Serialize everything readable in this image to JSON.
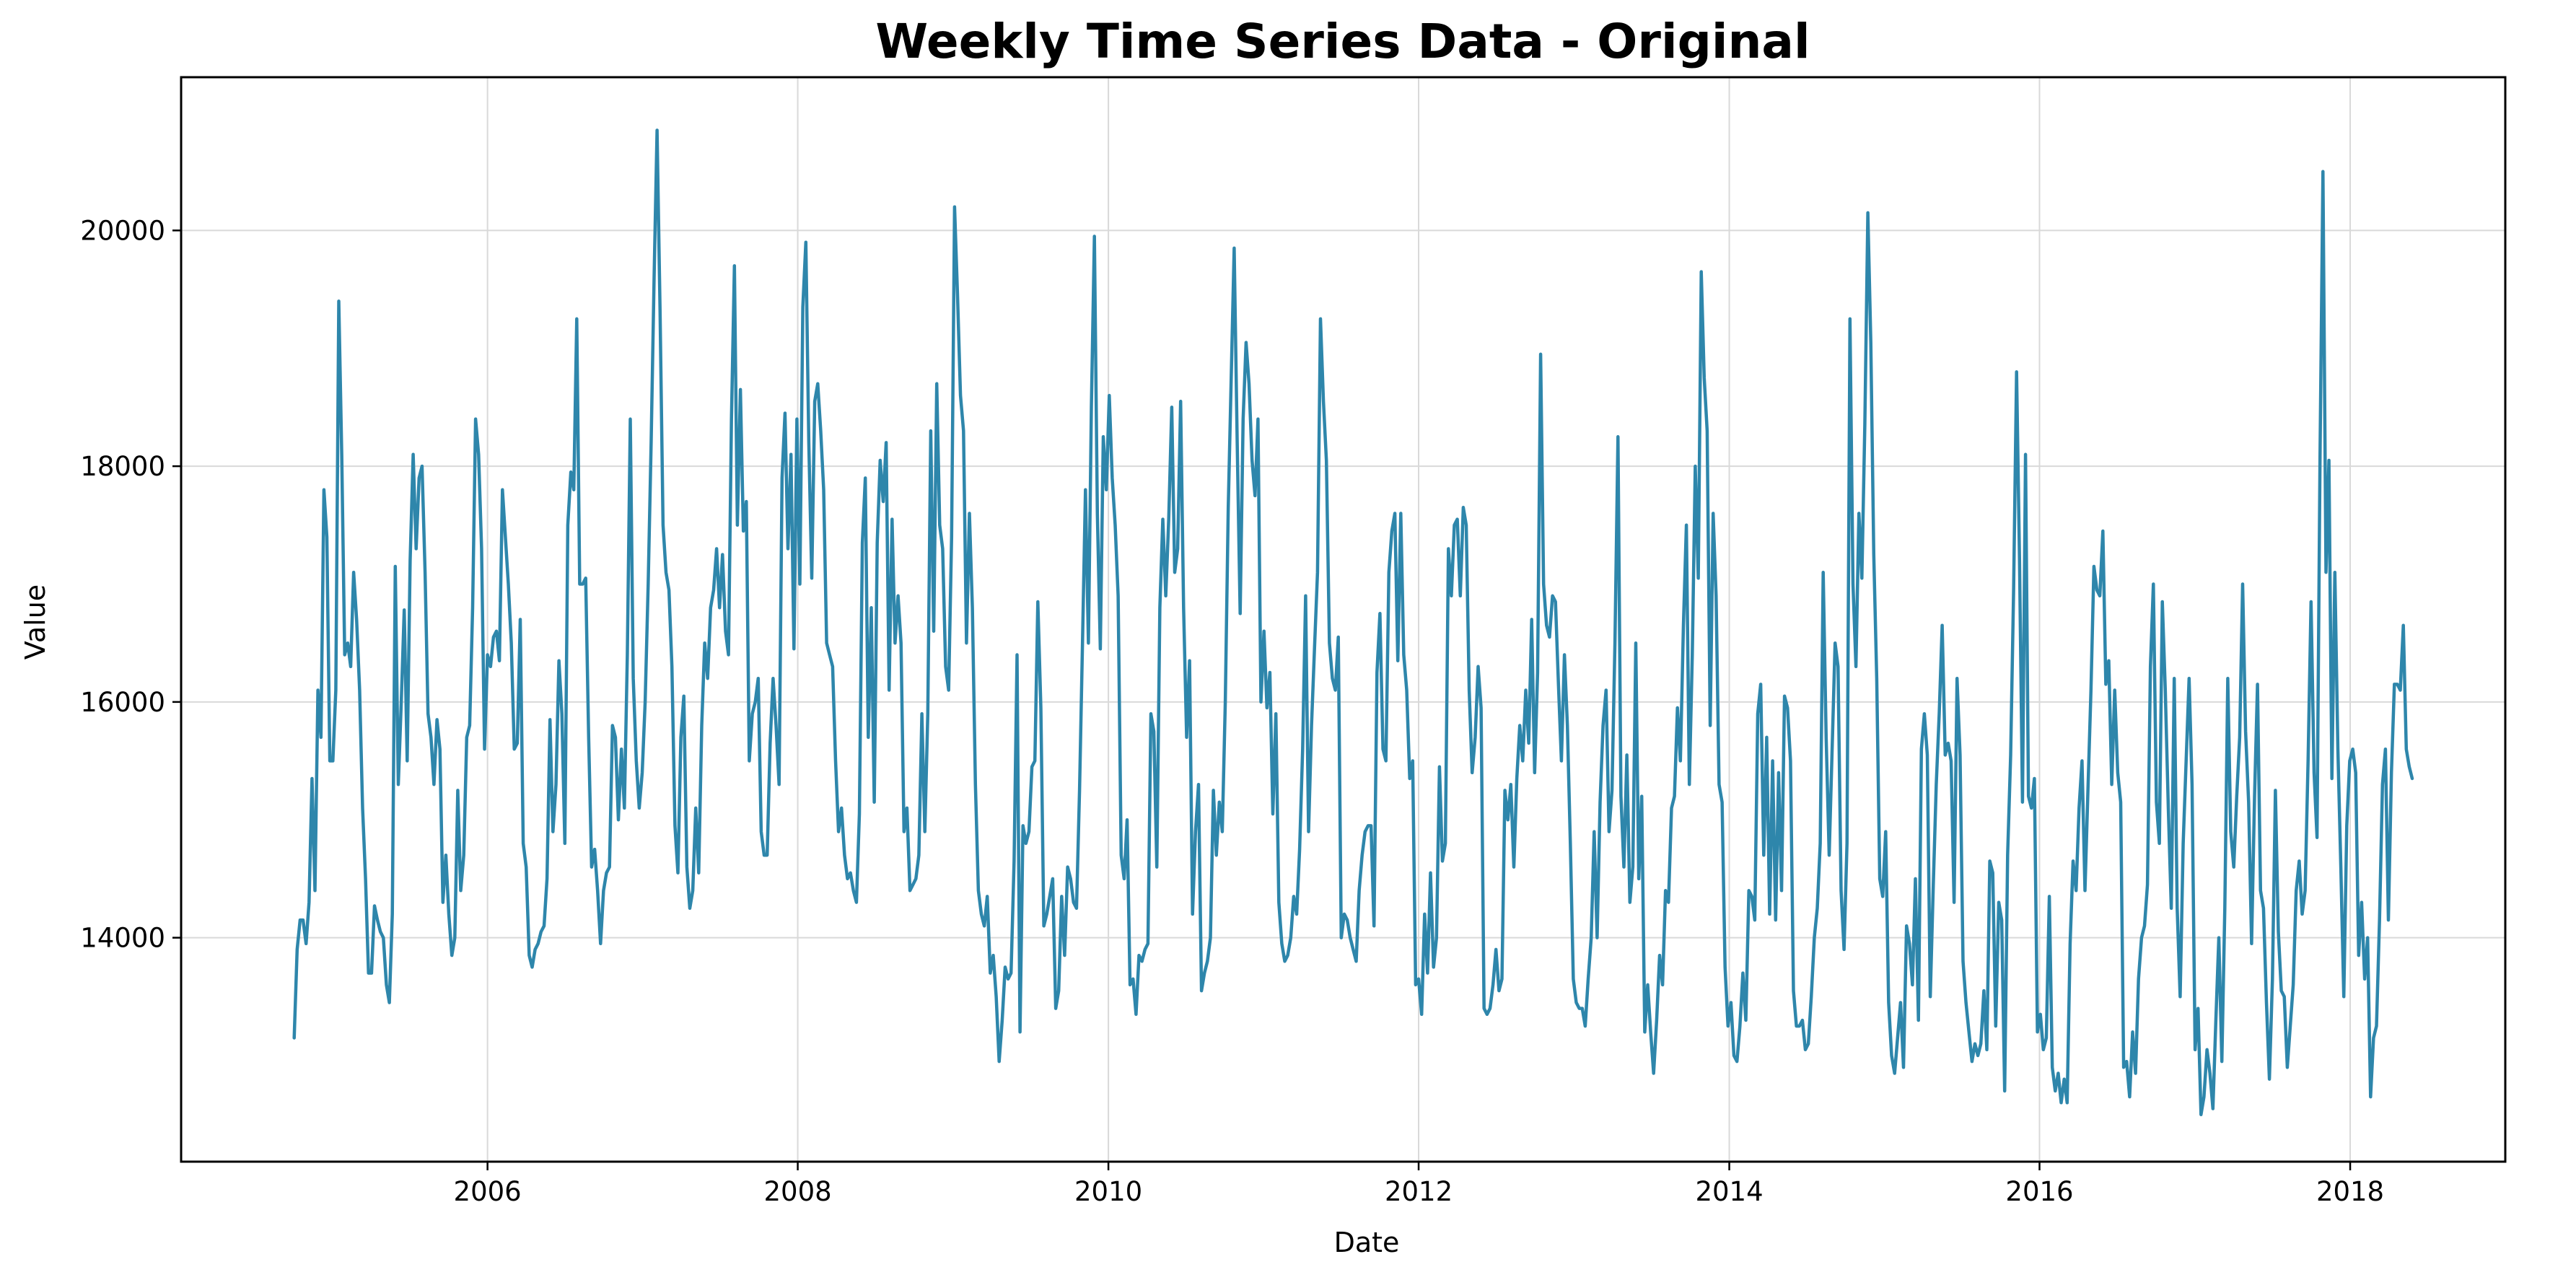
{
  "chart_data": {
    "type": "line",
    "title": "Weekly Time Series Data - Original",
    "xlabel": "Date",
    "ylabel": "Value",
    "grid": true,
    "xlim": [
      "2004-01-11",
      "2019-01-01"
    ],
    "ylim": [
      12100,
      21300
    ],
    "x_ticks": [
      "2006",
      "2008",
      "2010",
      "2012",
      "2014",
      "2016",
      "2018"
    ],
    "y_ticks": [
      14000,
      16000,
      18000,
      20000
    ],
    "line_color": "#2e86ab",
    "series": [
      {
        "start_date": "2004-10-03",
        "frequency": "weekly",
        "values": [
          13150,
          13900,
          14150,
          14150,
          13950,
          14300,
          15350,
          14400,
          16100,
          15700,
          17800,
          17400,
          15500,
          15500,
          16100,
          19400,
          18100,
          16400,
          16500,
          16300,
          17100,
          16700,
          16100,
          15100,
          14500,
          13700,
          13700,
          14270,
          14150,
          14050,
          14000,
          13600,
          13450,
          14200,
          17150,
          15300,
          16000,
          16780,
          15500,
          17200,
          18100,
          17300,
          17900,
          18000,
          17100,
          15900,
          15700,
          15300,
          15850,
          15600,
          14300,
          14700,
          14200,
          13850,
          14000,
          15250,
          14400,
          14700,
          15700,
          15800,
          16800,
          18400,
          18100,
          17300,
          15600,
          16400,
          16300,
          16550,
          16600,
          16350,
          17800,
          17400,
          17000,
          16500,
          15600,
          15650,
          16700,
          14800,
          14600,
          13850,
          13750,
          13900,
          13950,
          14050,
          14100,
          14500,
          15850,
          14900,
          15300,
          16350,
          15900,
          14800,
          17500,
          17950,
          17800,
          19250,
          17000,
          17000,
          17050,
          15700,
          14600,
          14750,
          14400,
          13950,
          14400,
          14550,
          14600,
          15800,
          15700,
          15000,
          15600,
          15100,
          16400,
          18400,
          16200,
          15500,
          15100,
          15400,
          16000,
          17000,
          18200,
          19600,
          20850,
          19300,
          17500,
          17100,
          16950,
          16300,
          14950,
          14550,
          15700,
          16050,
          14600,
          14250,
          14400,
          15100,
          14550,
          15800,
          16500,
          16200,
          16800,
          16950,
          17300,
          16800,
          17250,
          16600,
          16400,
          18400,
          19700,
          17500,
          18650,
          17450,
          17700,
          15500,
          15900,
          16000,
          16200,
          14900,
          14700,
          14700,
          15650,
          16200,
          15800,
          15300,
          17900,
          18450,
          17300,
          18100,
          16450,
          18400,
          17000,
          19350,
          19900,
          18200,
          17050,
          18550,
          18700,
          18300,
          17800,
          16500,
          16400,
          16300,
          15500,
          14900,
          15100,
          14700,
          14500,
          14550,
          14400,
          14300,
          15050,
          17350,
          17900,
          15700,
          16800,
          15150,
          17350,
          18050,
          17700,
          18200,
          16100,
          17550,
          16500,
          16900,
          16500,
          14900,
          15100,
          14400,
          14450,
          14500,
          14700,
          15900,
          14900,
          15900,
          18300,
          16600,
          18700,
          17500,
          17300,
          16300,
          16100,
          17400,
          20200,
          19450,
          18600,
          18300,
          16500,
          17600,
          16800,
          15300,
          14400,
          14200,
          14100,
          14350,
          13700,
          13850,
          13500,
          12950,
          13300,
          13750,
          13650,
          13700,
          14650,
          16400,
          13200,
          14950,
          14800,
          14900,
          15450,
          15500,
          16850,
          15950,
          14100,
          14200,
          14350,
          14500,
          13400,
          13550,
          14350,
          13850,
          14600,
          14500,
          14300,
          14250,
          15250,
          16500,
          17800,
          16500,
          18500,
          19950,
          17600,
          16450,
          18250,
          17800,
          18600,
          17900,
          17500,
          16900,
          14700,
          14500,
          15000,
          13600,
          13650,
          13350,
          13850,
          13800,
          13900,
          13950,
          15900,
          15750,
          14600,
          16800,
          17550,
          16900,
          17550,
          18500,
          17100,
          17300,
          18550,
          16800,
          15700,
          16350,
          14200,
          14900,
          15300,
          13550,
          13700,
          13800,
          14000,
          15250,
          14700,
          15150,
          14900,
          16000,
          17650,
          18750,
          19850,
          18200,
          16750,
          18400,
          19050,
          18700,
          18050,
          17750,
          18400,
          16000,
          16600,
          15950,
          16250,
          15050,
          15900,
          14300,
          13950,
          13800,
          13850,
          14000,
          14350,
          14200,
          14750,
          15600,
          16900,
          14900,
          15800,
          16450,
          17100,
          19250,
          18550,
          18050,
          16500,
          16200,
          16100,
          16550,
          14000,
          14200,
          14150,
          14000,
          13900,
          13800,
          14400,
          14700,
          14900,
          14950,
          14950,
          14100,
          16250,
          16750,
          15600,
          15500,
          17100,
          17450,
          17600,
          16350,
          17600,
          16400,
          16100,
          15350,
          15500,
          13600,
          13650,
          13350,
          14200,
          13700,
          14550,
          13750,
          14000,
          15450,
          14650,
          14800,
          17300,
          16900,
          17500,
          17550,
          16900,
          17650,
          17500,
          16100,
          15400,
          15700,
          16300,
          15950,
          13400,
          13350,
          13400,
          13600,
          13900,
          13550,
          13650,
          15250,
          15000,
          15300,
          14600,
          15350,
          15800,
          15500,
          16100,
          15650,
          16700,
          15400,
          16250,
          18950,
          17000,
          16650,
          16550,
          16900,
          16850,
          16150,
          15500,
          16400,
          15800,
          14800,
          13650,
          13450,
          13400,
          13400,
          13250,
          13650,
          14000,
          14900,
          14000,
          15150,
          15800,
          16100,
          14900,
          15250,
          16500,
          18250,
          15200,
          14600,
          15550,
          14300,
          14600,
          16500,
          14500,
          15200,
          13200,
          13600,
          13200,
          12850,
          13300,
          13850,
          13600,
          14400,
          14300,
          15100,
          15200,
          15950,
          15500,
          16650,
          17500,
          15300,
          16400,
          18000,
          17050,
          19650,
          18750,
          18300,
          15800,
          17600,
          16900,
          15300,
          15150,
          13750,
          13250,
          13450,
          13000,
          12950,
          13250,
          13700,
          13300,
          14400,
          14350,
          14150,
          15900,
          16150,
          14700,
          15700,
          14200,
          15500,
          14150,
          15400,
          14400,
          16050,
          15950,
          15500,
          13550,
          13250,
          13250,
          13300,
          13050,
          13100,
          13500,
          14000,
          14250,
          14800,
          17100,
          15700,
          14700,
          15600,
          16500,
          16300,
          14400,
          13900,
          14800,
          19250,
          17000,
          16300,
          17600,
          17050,
          18350,
          20150,
          19050,
          17250,
          16200,
          14500,
          14350,
          14900,
          13450,
          13000,
          12850,
          13150,
          13450,
          12900,
          14100,
          13950,
          13600,
          14500,
          13300,
          15600,
          15900,
          15550,
          13500,
          14450,
          15300,
          15900,
          16650,
          15550,
          15650,
          15500,
          14300,
          16200,
          15550,
          13800,
          13450,
          13200,
          12950,
          13100,
          13000,
          13100,
          13550,
          13050,
          14650,
          14550,
          13250,
          14300,
          14150,
          12700,
          14700,
          15550,
          16950,
          18800,
          17200,
          15150,
          18100,
          15200,
          15100,
          15350,
          13200,
          13350,
          13050,
          13150,
          14350,
          12900,
          12700,
          12850,
          12600,
          12800,
          12600,
          13950,
          14650,
          14400,
          15100,
          15500,
          14400,
          15250,
          16100,
          17150,
          16950,
          16900,
          17450,
          16150,
          16350,
          15300,
          16100,
          15400,
          15150,
          12900,
          12950,
          12650,
          13200,
          12850,
          13650,
          14000,
          14100,
          14450,
          16300,
          17000,
          15150,
          14800,
          16850,
          16100,
          15100,
          14250,
          16200,
          14250,
          13500,
          14800,
          15500,
          16200,
          15300,
          13050,
          13400,
          12500,
          12650,
          13050,
          12850,
          12550,
          13300,
          14000,
          12950,
          14250,
          16200,
          14900,
          14600,
          15200,
          15700,
          17000,
          15750,
          15150,
          13950,
          15200,
          16150,
          14400,
          14250,
          13450,
          12800,
          13650,
          15250,
          14050,
          13550,
          13500,
          12900,
          13250,
          13600,
          14400,
          14650,
          14200,
          14400,
          15500,
          16850,
          15400,
          14850,
          18050,
          20500,
          17100,
          18050,
          15350,
          17100,
          15600,
          14600,
          13500,
          14950,
          15500,
          15600,
          15400,
          13850,
          14300,
          13650,
          14000,
          12650,
          13150,
          13250,
          14150,
          15300,
          15600,
          14150,
          15400,
          16150,
          16150,
          16100,
          16650,
          15600,
          15450,
          15350
        ]
      }
    ]
  }
}
